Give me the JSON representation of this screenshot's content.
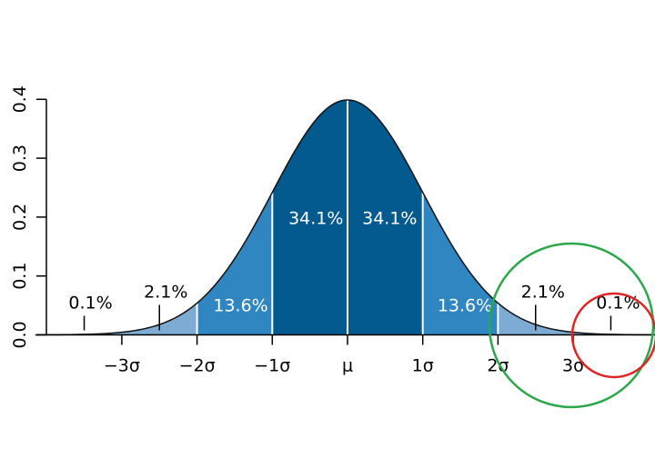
{
  "chart_data": {
    "type": "area",
    "title": "",
    "xlabel": "",
    "ylabel": "",
    "xlim": [
      -4.15,
      4.15
    ],
    "ylim": [
      0,
      0.4
    ],
    "grid": false,
    "y_ticks": [
      "0.0",
      "0.1",
      "0.2",
      "0.3",
      "0.4"
    ],
    "y_tick_values": [
      0,
      0.1,
      0.2,
      0.3,
      0.4
    ],
    "x_ticks": [
      "−3σ",
      "−2σ",
      "−1σ",
      "μ",
      "1σ",
      "2σ",
      "3σ"
    ],
    "x_tick_values": [
      -3,
      -2,
      -1,
      0,
      1,
      2,
      3
    ],
    "curve": "standard normal density",
    "regions": [
      {
        "from": -4.15,
        "to": -3,
        "color": "#7eabd4"
      },
      {
        "from": -3,
        "to": -2,
        "color": "#7eabd4"
      },
      {
        "from": -2,
        "to": -1,
        "color": "#2f86c0"
      },
      {
        "from": -1,
        "to": 0,
        "color": "#035a8e"
      },
      {
        "from": 0,
        "to": 1,
        "color": "#035a8e"
      },
      {
        "from": 1,
        "to": 2,
        "color": "#2f86c0"
      },
      {
        "from": 2,
        "to": 3,
        "color": "#7eabd4"
      },
      {
        "from": 3,
        "to": 4.15,
        "color": "#7eabd4"
      }
    ],
    "annotations": [
      {
        "text": "0.1%",
        "x": -3.5,
        "inside": false,
        "marker": true
      },
      {
        "text": "2.1%",
        "x": -2.5,
        "inside": false,
        "marker": true
      },
      {
        "text": "13.6%",
        "x": -1.42,
        "y": 0.04,
        "inside": true
      },
      {
        "text": "34.1%",
        "x": -0.42,
        "y": 0.188,
        "inside": true
      },
      {
        "text": "34.1%",
        "x": 0.56,
        "y": 0.188,
        "inside": true
      },
      {
        "text": "13.6%",
        "x": 1.56,
        "y": 0.04,
        "inside": true
      },
      {
        "text": "2.1%",
        "x": 2.5,
        "inside": false,
        "marker": true
      },
      {
        "text": "0.1%",
        "x": 3.5,
        "inside": false,
        "marker": true
      }
    ],
    "overlay_circles": [
      {
        "color": "#2aa84a",
        "around": "2σ to 4σ tail"
      },
      {
        "color": "#e02424",
        "around": "beyond 3σ tail"
      }
    ]
  }
}
